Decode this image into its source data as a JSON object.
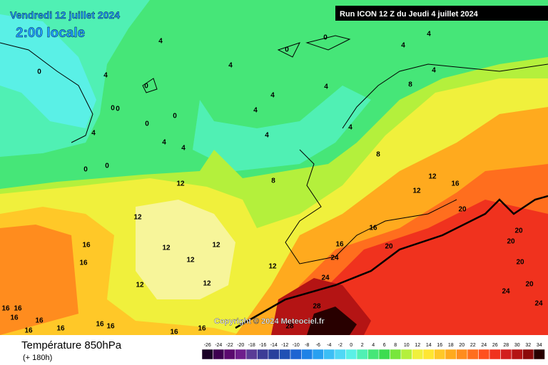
{
  "header": {
    "date": "Vendredi 12 juillet 2024",
    "time": "2:00 locale",
    "run": "Run ICON 12 Z du Jeudi 4 juillet 2024"
  },
  "copyright": "Copyright © 2024 Meteociel.fr",
  "footer": {
    "title": "Température 850hPa",
    "lead": "(+ 180h)"
  },
  "legend": {
    "labels": [
      "-26",
      "-24",
      "-22",
      "-20",
      "-18",
      "-16",
      "-14",
      "-12",
      "-10",
      "-8",
      "-6",
      "-4",
      "-2",
      "0",
      "2",
      "4",
      "6",
      "8",
      "10",
      "12",
      "14",
      "16",
      "18",
      "20",
      "22",
      "24",
      "26",
      "28",
      "30",
      "32",
      "34"
    ],
    "colors": [
      "#1a0026",
      "#3d0050",
      "#5a0a6e",
      "#6e1e8c",
      "#5a3c96",
      "#3c3c96",
      "#28409c",
      "#2050b4",
      "#1e64d2",
      "#1e82e6",
      "#28a0f0",
      "#3cbef5",
      "#50d7f5",
      "#5af0e6",
      "#50f0b4",
      "#46e678",
      "#3cdc50",
      "#78e63c",
      "#b4f03c",
      "#f0f03c",
      "#ffe632",
      "#ffc828",
      "#ffaa1e",
      "#ff8c1e",
      "#ff6e1e",
      "#ff501e",
      "#f0321e",
      "#d21e1e",
      "#b41414",
      "#8c0a0a",
      "#280000"
    ]
  },
  "contour_labels": [
    "4",
    "4",
    "4",
    "0",
    "0",
    "0",
    "0",
    "4",
    "4",
    "4",
    "0",
    "0",
    "4",
    "4",
    "4",
    "4",
    "4",
    "0",
    "0",
    "4",
    "4",
    "4",
    "8",
    "8",
    "8",
    "12",
    "12",
    "12",
    "12",
    "12",
    "12",
    "12",
    "12",
    "12",
    "12",
    "16",
    "16",
    "16",
    "16",
    "16",
    "20",
    "20",
    "20",
    "20",
    "20",
    "20",
    "24",
    "24",
    "24",
    "24",
    "28",
    "28",
    "16",
    "16",
    "16",
    "16",
    "16",
    "16",
    "16",
    "16",
    "16",
    "16",
    "0",
    "0"
  ]
}
